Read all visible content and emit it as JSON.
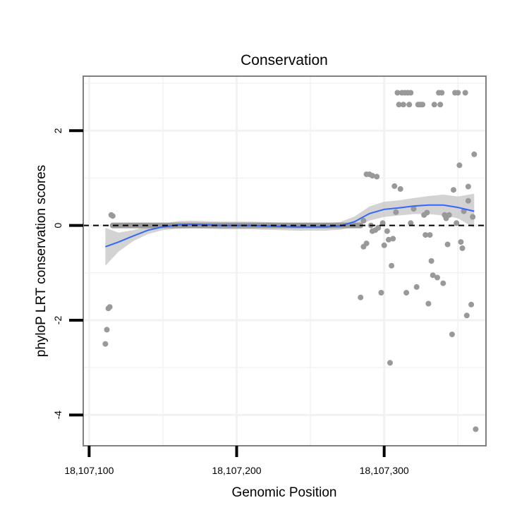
{
  "chart_data": {
    "type": "scatter",
    "title": "Conservation",
    "xlabel": "Genomic Position",
    "ylabel": "phyloP LRT conservation scores",
    "xlim": [
      18107096,
      18107369
    ],
    "ylim": [
      -4.65,
      3.15
    ],
    "x_ticks": [
      18107100,
      18107200,
      18107300
    ],
    "x_tick_labels": [
      "18,107,100",
      "18,107,200",
      "18,107,300"
    ],
    "x_minor_grid": [
      18107150,
      18107250,
      18107350
    ],
    "y_ticks": [
      2,
      0,
      -2,
      -4
    ],
    "y_tick_labels": [
      "2",
      "0",
      "-2",
      "-4"
    ],
    "y_minor_grid": [
      3,
      1,
      -1,
      -3
    ],
    "reference_line": {
      "y": 0,
      "style": "dashed"
    },
    "colors": {
      "points": "#999999",
      "smooth_line": "#3366ff",
      "confidence_band": "#c4c4c4",
      "grid": "#f2f2f2",
      "panel_border": "#808080"
    },
    "zero_run": {
      "x_start": 18107116,
      "x_end": 18107284,
      "y": 0
    },
    "points": [
      [
        18107111,
        -2.5
      ],
      [
        18107112,
        -2.2
      ],
      [
        18107113,
        -1.75
      ],
      [
        18107114,
        -1.72
      ],
      [
        18107115,
        0.22
      ],
      [
        18107116,
        0.2
      ],
      [
        18107284,
        -1.52
      ],
      [
        18107286,
        0.1
      ],
      [
        18107286,
        -0.45
      ],
      [
        18107288,
        -0.38
      ],
      [
        18107288,
        1.08
      ],
      [
        18107290,
        1.08
      ],
      [
        18107291,
        0.0
      ],
      [
        18107292,
        -0.12
      ],
      [
        18107292,
        1.05
      ],
      [
        18107294,
        -0.1
      ],
      [
        18107295,
        1.03
      ],
      [
        18107296,
        -0.05
      ],
      [
        18107298,
        -1.42
      ],
      [
        18107299,
        0.05
      ],
      [
        18107300,
        -0.42
      ],
      [
        18107302,
        -0.12
      ],
      [
        18107303,
        -0.3
      ],
      [
        18107304,
        -2.9
      ],
      [
        18107305,
        -0.85
      ],
      [
        18107306,
        -0.28
      ],
      [
        18107307,
        0.83
      ],
      [
        18107308,
        0.28
      ],
      [
        18107309,
        2.8
      ],
      [
        18107310,
        2.55
      ],
      [
        18107311,
        0.77
      ],
      [
        18107312,
        2.8
      ],
      [
        18107313,
        2.55
      ],
      [
        18107314,
        2.8
      ],
      [
        18107315,
        -1.42
      ],
      [
        18107316,
        2.8
      ],
      [
        18107317,
        2.55
      ],
      [
        18107318,
        2.8
      ],
      [
        18107318,
        0.05
      ],
      [
        18107320,
        0.35
      ],
      [
        18107322,
        -1.3
      ],
      [
        18107323,
        2.55
      ],
      [
        18107324,
        2.55
      ],
      [
        18107325,
        2.55
      ],
      [
        18107326,
        2.55
      ],
      [
        18107327,
        0.22
      ],
      [
        18107328,
        -0.2
      ],
      [
        18107329,
        0.27
      ],
      [
        18107330,
        -1.65
      ],
      [
        18107331,
        -0.2
      ],
      [
        18107332,
        -0.75
      ],
      [
        18107333,
        -1.05
      ],
      [
        18107334,
        2.55
      ],
      [
        18107336,
        -1.1
      ],
      [
        18107337,
        2.8
      ],
      [
        18107338,
        2.55
      ],
      [
        18107339,
        2.8
      ],
      [
        18107340,
        -1.22
      ],
      [
        18107341,
        0.22
      ],
      [
        18107342,
        0.15
      ],
      [
        18107343,
        -0.4
      ],
      [
        18107344,
        0.22
      ],
      [
        18107346,
        -2.3
      ],
      [
        18107347,
        0.75
      ],
      [
        18107348,
        2.8
      ],
      [
        18107349,
        0.05
      ],
      [
        18107350,
        2.8
      ],
      [
        18107351,
        1.27
      ],
      [
        18107352,
        -0.35
      ],
      [
        18107353,
        -0.48
      ],
      [
        18107354,
        0.3
      ],
      [
        18107355,
        2.8
      ],
      [
        18107356,
        -1.9
      ],
      [
        18107357,
        0.82
      ],
      [
        18107357,
        0.52
      ],
      [
        18107359,
        -1.67
      ],
      [
        18107360,
        0.18
      ],
      [
        18107361,
        1.5
      ],
      [
        18107362,
        -4.3
      ]
    ],
    "smooth_fit": {
      "x": [
        18107111,
        18107120,
        18107130,
        18107140,
        18107150,
        18107160,
        18107170,
        18107180,
        18107190,
        18107200,
        18107210,
        18107220,
        18107230,
        18107240,
        18107250,
        18107260,
        18107270,
        18107280,
        18107290,
        18107300,
        18107310,
        18107320,
        18107330,
        18107340,
        18107350,
        18107361
      ],
      "y": [
        -0.45,
        -0.35,
        -0.22,
        -0.1,
        -0.03,
        0.01,
        0.02,
        0.01,
        0.0,
        0.0,
        0.0,
        -0.01,
        -0.02,
        -0.03,
        -0.03,
        -0.03,
        -0.01,
        0.08,
        0.25,
        0.34,
        0.37,
        0.41,
        0.43,
        0.43,
        0.38,
        0.3
      ],
      "lower": [
        -0.85,
        -0.55,
        -0.33,
        -0.18,
        -0.1,
        -0.07,
        -0.06,
        -0.07,
        -0.08,
        -0.08,
        -0.08,
        -0.09,
        -0.1,
        -0.11,
        -0.11,
        -0.11,
        -0.09,
        -0.03,
        0.1,
        0.18,
        0.21,
        0.24,
        0.24,
        0.21,
        0.15,
        -0.05
      ],
      "upper": [
        -0.05,
        -0.15,
        -0.1,
        -0.02,
        0.04,
        0.09,
        0.1,
        0.09,
        0.08,
        0.08,
        0.08,
        0.07,
        0.06,
        0.05,
        0.05,
        0.05,
        0.07,
        0.19,
        0.4,
        0.5,
        0.53,
        0.58,
        0.62,
        0.65,
        0.61,
        0.67
      ]
    }
  }
}
